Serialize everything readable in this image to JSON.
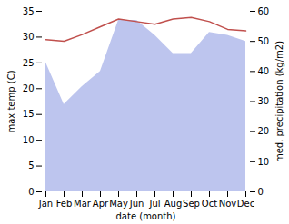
{
  "chart_data": {
    "type": "line",
    "categories": [
      "Jan",
      "Feb",
      "Mar",
      "Apr",
      "May",
      "Jun",
      "Jul",
      "Aug",
      "Sep",
      "Oct",
      "Nov",
      "Dec"
    ],
    "xlabel": "date (month)",
    "ylabel": "max temp (C)",
    "y2label": "med. precipitation (kg/m2)",
    "ylim": [
      0,
      35
    ],
    "yticks": [
      0,
      5,
      10,
      15,
      20,
      25,
      30,
      35
    ],
    "y2lim": [
      0,
      60
    ],
    "y2ticks": [
      0,
      10,
      20,
      30,
      40,
      50,
      60
    ],
    "series": [
      {
        "type": "area",
        "axis": "y2",
        "color": "#bdc5ee",
        "values": [
          43,
          29,
          35,
          40,
          57,
          57,
          52,
          46,
          46,
          53,
          52,
          50
        ]
      },
      {
        "type": "line",
        "color": "#c0504d",
        "values": [
          29.5,
          29.2,
          30.5,
          32.0,
          33.5,
          33.0,
          32.5,
          33.5,
          33.8,
          33.0,
          31.5,
          31.2
        ]
      }
    ]
  }
}
